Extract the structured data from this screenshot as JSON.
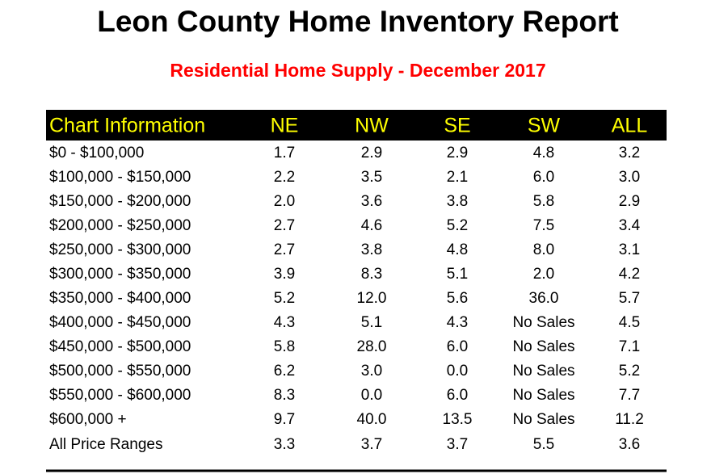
{
  "header": {
    "title": "Leon County Home Inventory Report",
    "subtitle": "Residential Home Supply - December 2017"
  },
  "table": {
    "columns": [
      "Chart Information",
      "NE",
      "NW",
      "SE",
      "SW",
      "ALL"
    ],
    "rows": [
      [
        "$0 - $100,000",
        "1.7",
        "2.9",
        "2.9",
        "4.8",
        "3.2"
      ],
      [
        "$100,000 - $150,000",
        "2.2",
        "3.5",
        "2.1",
        "6.0",
        "3.0"
      ],
      [
        "$150,000 - $200,000",
        "2.0",
        "3.6",
        "3.8",
        "5.8",
        "2.9"
      ],
      [
        "$200,000 - $250,000",
        "2.7",
        "4.6",
        "5.2",
        "7.5",
        "3.4"
      ],
      [
        "$250,000 - $300,000",
        "2.7",
        "3.8",
        "4.8",
        "8.0",
        "3.1"
      ],
      [
        "$300,000 - $350,000",
        "3.9",
        "8.3",
        "5.1",
        "2.0",
        "4.2"
      ],
      [
        "$350,000 - $400,000",
        "5.2",
        "12.0",
        "5.6",
        "36.0",
        "5.7"
      ],
      [
        "$400,000 - $450,000",
        "4.3",
        "5.1",
        "4.3",
        "No Sales",
        "4.5"
      ],
      [
        "$450,000 - $500,000",
        "5.8",
        "28.0",
        "6.0",
        "No Sales",
        "7.1"
      ],
      [
        "$500,000 - $550,000",
        "6.2",
        "3.0",
        "0.0",
        "No Sales",
        "5.2"
      ],
      [
        "$550,000 - $600,000",
        "8.3",
        "0.0",
        "6.0",
        "No Sales",
        "7.7"
      ],
      [
        "$600,000 +",
        "9.7",
        "40.0",
        "13.5",
        "No Sales",
        "11.2"
      ],
      [
        "All Price Ranges",
        "3.3",
        "3.7",
        "3.7",
        "5.5",
        "3.6"
      ]
    ]
  }
}
